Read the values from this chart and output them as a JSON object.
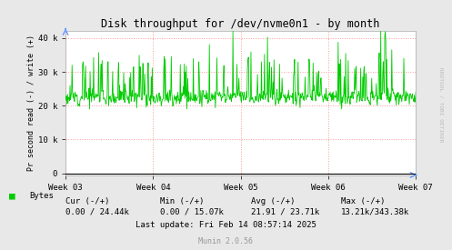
{
  "title": "Disk throughput for /dev/nvme0n1 - by month",
  "ylabel": "Pr second read (-) / write (+)",
  "bg_color": "#e8e8e8",
  "plot_bg_color": "#ffffff",
  "grid_color": "#ff9999",
  "line_color": "#00cc00",
  "axis_color": "#000000",
  "yticks": [
    0,
    10000,
    20000,
    30000,
    40000
  ],
  "ytick_labels": [
    "0",
    "10 k",
    "20 k",
    "30 k",
    "40 k"
  ],
  "ylim": [
    -500,
    42000
  ],
  "xtick_labels": [
    "Week 03",
    "Week 04",
    "Week 05",
    "Week 06",
    "Week 07"
  ],
  "legend_label": "Bytes",
  "legend_color": "#00cc00",
  "munin_version": "Munin 2.0.56",
  "rrdtool_label": "RRDTOOL / TOBI OETIKER",
  "base_value": 22500,
  "num_points": 700,
  "seed": 12
}
